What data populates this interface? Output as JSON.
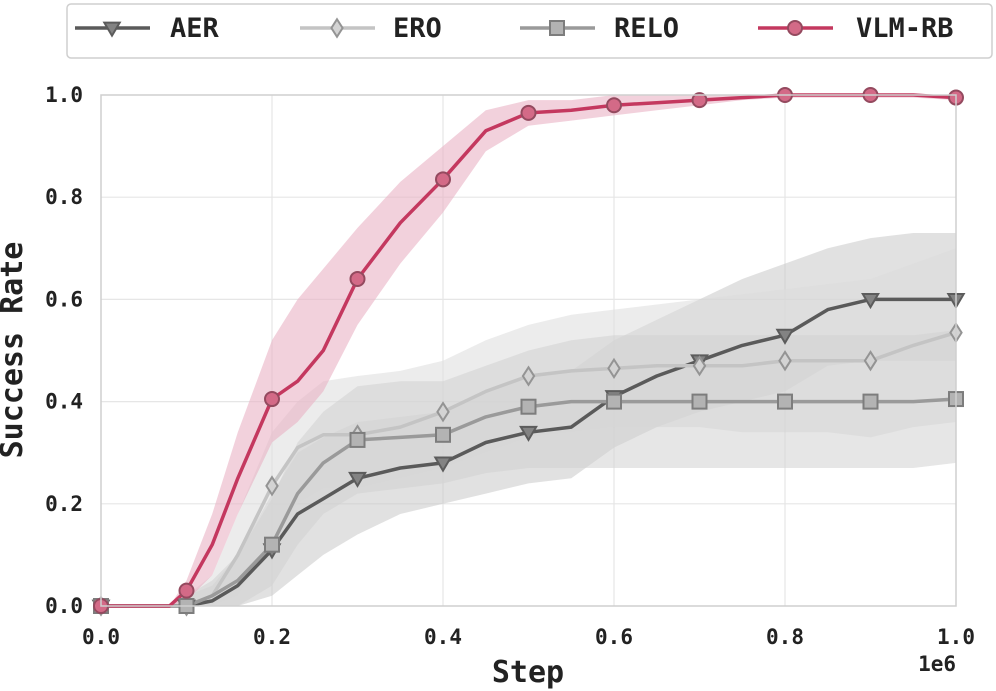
{
  "chart_data": {
    "type": "line",
    "xlabel": "Step",
    "ylabel": "Success Rate",
    "x_multiplier_label": "1e6",
    "xlim": [
      0.0,
      1.0
    ],
    "ylim": [
      0.0,
      1.0
    ],
    "x_ticks": [
      "0.0",
      "0.2",
      "0.4",
      "0.6",
      "0.8",
      "1.0"
    ],
    "y_ticks": [
      "0.0",
      "0.2",
      "0.4",
      "0.6",
      "0.8",
      "1.0"
    ],
    "grid": true,
    "legend_position": "top",
    "series": [
      {
        "name": "AER",
        "color": "#5a5a5a",
        "band_color": "#c8c8c8",
        "marker": "triangle-down",
        "x": [
          0.0,
          0.05,
          0.08,
          0.1,
          0.13,
          0.16,
          0.2,
          0.23,
          0.26,
          0.3,
          0.35,
          0.4,
          0.45,
          0.5,
          0.55,
          0.6,
          0.65,
          0.7,
          0.75,
          0.8,
          0.85,
          0.9,
          0.95,
          1.0
        ],
        "y": [
          0.0,
          0.0,
          0.0,
          0.0,
          0.01,
          0.04,
          0.11,
          0.18,
          0.21,
          0.25,
          0.27,
          0.28,
          0.32,
          0.34,
          0.35,
          0.41,
          0.45,
          0.48,
          0.51,
          0.53,
          0.58,
          0.6,
          0.6,
          0.6
        ],
        "lower": [
          0.0,
          0.0,
          0.0,
          0.0,
          0.0,
          0.0,
          0.02,
          0.06,
          0.1,
          0.14,
          0.18,
          0.2,
          0.22,
          0.24,
          0.25,
          0.31,
          0.35,
          0.38,
          0.4,
          0.42,
          0.47,
          0.48,
          0.48,
          0.48
        ],
        "upper": [
          0.0,
          0.0,
          0.0,
          0.02,
          0.04,
          0.1,
          0.22,
          0.3,
          0.33,
          0.36,
          0.37,
          0.38,
          0.42,
          0.45,
          0.46,
          0.52,
          0.56,
          0.6,
          0.64,
          0.67,
          0.7,
          0.72,
          0.73,
          0.73
        ],
        "marker_x": [
          0.0,
          0.1,
          0.2,
          0.3,
          0.4,
          0.5,
          0.6,
          0.7,
          0.8,
          0.9,
          1.0
        ],
        "marker_y": [
          0.0,
          0.0,
          0.11,
          0.25,
          0.28,
          0.34,
          0.41,
          0.48,
          0.53,
          0.6,
          0.6
        ]
      },
      {
        "name": "ERO",
        "color": "#c4c4c4",
        "band_color": "#dcdcdc",
        "marker": "diamond",
        "x": [
          0.0,
          0.05,
          0.08,
          0.1,
          0.13,
          0.16,
          0.2,
          0.23,
          0.26,
          0.3,
          0.35,
          0.4,
          0.45,
          0.5,
          0.55,
          0.6,
          0.65,
          0.7,
          0.75,
          0.8,
          0.85,
          0.9,
          0.95,
          1.0
        ],
        "y": [
          0.0,
          0.0,
          0.0,
          0.0,
          0.02,
          0.1,
          0.235,
          0.31,
          0.335,
          0.335,
          0.35,
          0.38,
          0.42,
          0.45,
          0.46,
          0.465,
          0.47,
          0.47,
          0.47,
          0.48,
          0.48,
          0.48,
          0.51,
          0.535
        ],
        "lower": [
          0.0,
          0.0,
          0.0,
          0.0,
          0.0,
          0.02,
          0.12,
          0.2,
          0.23,
          0.23,
          0.25,
          0.27,
          0.3,
          0.33,
          0.34,
          0.35,
          0.35,
          0.35,
          0.34,
          0.34,
          0.34,
          0.33,
          0.35,
          0.36
        ],
        "upper": [
          0.0,
          0.0,
          0.0,
          0.02,
          0.06,
          0.18,
          0.34,
          0.4,
          0.44,
          0.45,
          0.46,
          0.48,
          0.52,
          0.55,
          0.57,
          0.58,
          0.59,
          0.6,
          0.61,
          0.62,
          0.63,
          0.64,
          0.67,
          0.7
        ],
        "marker_x": [
          0.0,
          0.1,
          0.2,
          0.3,
          0.4,
          0.5,
          0.6,
          0.7,
          0.8,
          0.9,
          1.0
        ],
        "marker_y": [
          0.0,
          0.0,
          0.235,
          0.335,
          0.38,
          0.45,
          0.465,
          0.47,
          0.48,
          0.48,
          0.535
        ]
      },
      {
        "name": "RELO",
        "color": "#9a9a9a",
        "band_color": "#d2d2d2",
        "marker": "square",
        "x": [
          0.0,
          0.05,
          0.08,
          0.1,
          0.13,
          0.16,
          0.2,
          0.23,
          0.26,
          0.3,
          0.35,
          0.4,
          0.45,
          0.5,
          0.55,
          0.6,
          0.65,
          0.7,
          0.75,
          0.8,
          0.85,
          0.9,
          0.95,
          1.0
        ],
        "y": [
          0.0,
          0.0,
          0.0,
          0.0,
          0.02,
          0.05,
          0.12,
          0.22,
          0.28,
          0.325,
          0.33,
          0.335,
          0.37,
          0.39,
          0.4,
          0.4,
          0.4,
          0.4,
          0.4,
          0.4,
          0.4,
          0.4,
          0.4,
          0.405
        ],
        "lower": [
          0.0,
          0.0,
          0.0,
          0.0,
          0.0,
          0.0,
          0.04,
          0.12,
          0.18,
          0.22,
          0.23,
          0.24,
          0.26,
          0.27,
          0.27,
          0.27,
          0.27,
          0.27,
          0.27,
          0.27,
          0.27,
          0.27,
          0.27,
          0.28
        ],
        "upper": [
          0.0,
          0.0,
          0.0,
          0.02,
          0.05,
          0.1,
          0.21,
          0.32,
          0.38,
          0.43,
          0.44,
          0.44,
          0.47,
          0.5,
          0.52,
          0.53,
          0.53,
          0.53,
          0.53,
          0.53,
          0.53,
          0.53,
          0.53,
          0.54
        ],
        "marker_x": [
          0.0,
          0.1,
          0.2,
          0.3,
          0.4,
          0.5,
          0.6,
          0.7,
          0.8,
          0.9,
          1.0
        ],
        "marker_y": [
          0.0,
          0.0,
          0.12,
          0.325,
          0.335,
          0.39,
          0.4,
          0.4,
          0.4,
          0.4,
          0.405
        ]
      },
      {
        "name": "VLM-RB",
        "color": "#c4385f",
        "band_color": "#eab3c4",
        "marker": "circle",
        "x": [
          0.0,
          0.05,
          0.08,
          0.1,
          0.13,
          0.16,
          0.2,
          0.23,
          0.26,
          0.3,
          0.35,
          0.4,
          0.45,
          0.5,
          0.55,
          0.6,
          0.65,
          0.7,
          0.75,
          0.8,
          0.85,
          0.9,
          0.95,
          1.0
        ],
        "y": [
          0.0,
          0.0,
          0.0,
          0.03,
          0.12,
          0.25,
          0.405,
          0.44,
          0.5,
          0.64,
          0.75,
          0.835,
          0.93,
          0.965,
          0.97,
          0.98,
          0.985,
          0.99,
          0.995,
          1.0,
          1.0,
          1.0,
          1.0,
          0.995
        ],
        "lower": [
          0.0,
          0.0,
          0.0,
          0.01,
          0.06,
          0.18,
          0.32,
          0.36,
          0.42,
          0.55,
          0.67,
          0.77,
          0.89,
          0.94,
          0.95,
          0.96,
          0.97,
          0.98,
          0.99,
          0.995,
          0.995,
          0.995,
          0.995,
          0.99
        ],
        "upper": [
          0.0,
          0.0,
          0.0,
          0.05,
          0.18,
          0.34,
          0.52,
          0.6,
          0.66,
          0.74,
          0.83,
          0.9,
          0.97,
          0.99,
          0.99,
          1.0,
          1.0,
          1.0,
          1.0,
          1.0,
          1.0,
          1.0,
          1.0,
          1.0
        ],
        "marker_x": [
          0.0,
          0.1,
          0.2,
          0.3,
          0.4,
          0.5,
          0.6,
          0.7,
          0.8,
          0.9,
          1.0
        ],
        "marker_y": [
          0.0,
          0.03,
          0.405,
          0.64,
          0.835,
          0.965,
          0.98,
          0.99,
          1.0,
          1.0,
          0.995
        ]
      }
    ]
  }
}
